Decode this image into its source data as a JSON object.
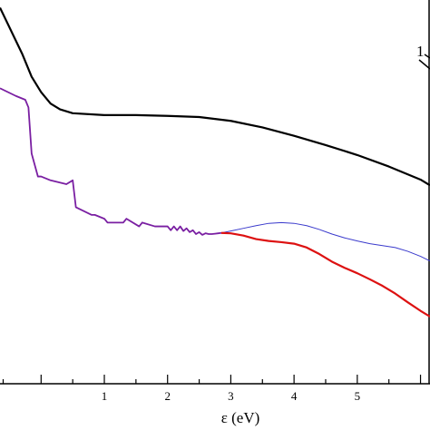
{
  "chart_data": {
    "type": "line",
    "xlabel": "ε (eV)",
    "ylabel": "",
    "xlim": [
      -0.65,
      6.15
    ],
    "ylim": [
      0,
      1
    ],
    "x_ticks": [
      1,
      2,
      3,
      4,
      5
    ],
    "x_tick_labels": [
      "1",
      "2",
      "3",
      "4",
      "5"
    ],
    "annotation": "1",
    "grid": false,
    "series": [
      {
        "color": "#000000",
        "x": [
          -0.65,
          -0.3,
          -0.15,
          0.0,
          0.15,
          0.3,
          0.5,
          1.0,
          1.5,
          2.0,
          2.5,
          3.0,
          3.5,
          4.0,
          4.5,
          5.0,
          5.5,
          6.0,
          6.15
        ],
        "y": [
          0.98,
          0.86,
          0.8,
          0.76,
          0.73,
          0.715,
          0.705,
          0.7,
          0.7,
          0.698,
          0.695,
          0.685,
          0.668,
          0.646,
          0.622,
          0.596,
          0.566,
          0.532,
          0.517
        ]
      },
      {
        "color": "#7a1fa2",
        "x": [
          -0.65,
          -0.4,
          -0.25,
          -0.2,
          -0.15,
          -0.05,
          0.0,
          0.15,
          0.4,
          0.5,
          0.55,
          0.8,
          0.85,
          1.0,
          1.05,
          1.3,
          1.35,
          1.55,
          1.6,
          1.8,
          1.85,
          2.0,
          2.05,
          2.1,
          2.15,
          2.2,
          2.25,
          2.3,
          2.35,
          2.4,
          2.45,
          2.5,
          2.55,
          2.6,
          2.65,
          2.7,
          2.75,
          2.8,
          2.85
        ],
        "y": [
          0.77,
          0.75,
          0.74,
          0.72,
          0.6,
          0.54,
          0.54,
          0.53,
          0.52,
          0.53,
          0.46,
          0.44,
          0.44,
          0.43,
          0.42,
          0.42,
          0.43,
          0.41,
          0.42,
          0.41,
          0.41,
          0.41,
          0.4,
          0.41,
          0.4,
          0.41,
          0.398,
          0.405,
          0.395,
          0.4,
          0.39,
          0.395,
          0.388,
          0.392,
          0.39,
          0.39,
          0.391,
          0.392,
          0.393
        ]
      },
      {
        "color": "#3a3acc",
        "x": [
          2.85,
          3.0,
          3.2,
          3.4,
          3.6,
          3.8,
          4.0,
          4.2,
          4.4,
          4.6,
          4.8,
          5.0,
          5.2,
          5.4,
          5.6,
          5.8,
          6.0,
          6.15
        ],
        "y": [
          0.393,
          0.398,
          0.405,
          0.412,
          0.418,
          0.42,
          0.418,
          0.412,
          0.402,
          0.39,
          0.38,
          0.372,
          0.365,
          0.36,
          0.355,
          0.345,
          0.332,
          0.32
        ]
      },
      {
        "color": "#dd1111",
        "x": [
          2.85,
          3.0,
          3.2,
          3.4,
          3.6,
          3.8,
          4.0,
          4.2,
          4.4,
          4.6,
          4.8,
          5.0,
          5.2,
          5.4,
          5.6,
          5.8,
          6.0,
          6.15
        ],
        "y": [
          0.393,
          0.392,
          0.386,
          0.377,
          0.372,
          0.369,
          0.365,
          0.355,
          0.338,
          0.318,
          0.302,
          0.288,
          0.272,
          0.255,
          0.235,
          0.212,
          0.19,
          0.175
        ]
      }
    ]
  }
}
